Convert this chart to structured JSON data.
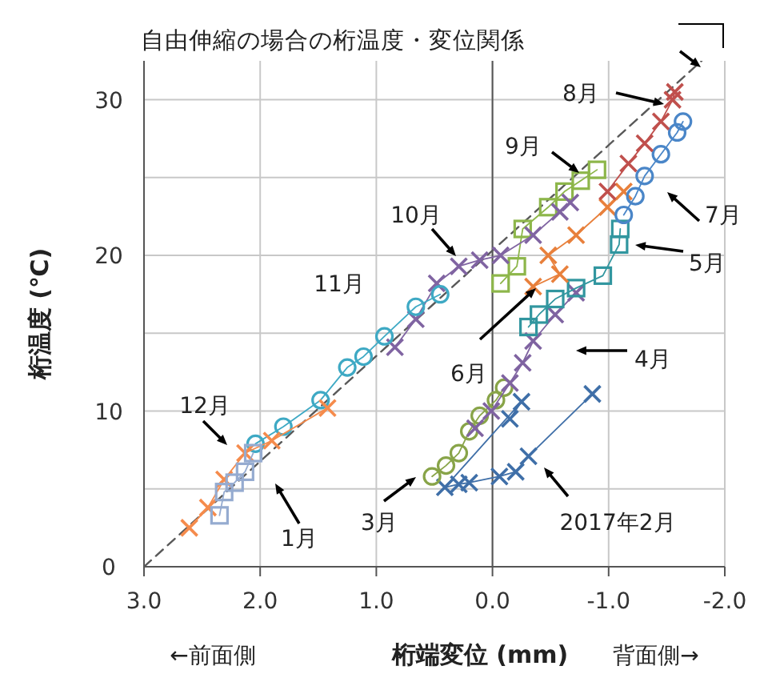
{
  "chart_data": {
    "type": "line",
    "xlabel": "桁端変位 (mm)",
    "ylabel": "桁温度 (℃)",
    "annotations": [
      "自由伸縮の場合の桁温度・変位関係",
      "←前面側",
      "背面側→"
    ],
    "xlim": [
      3,
      -2
    ],
    "ylim": [
      0,
      32.5
    ],
    "xticks": [
      {
        "value": 3,
        "label": "3.0"
      },
      {
        "value": 2,
        "label": "2.0"
      },
      {
        "value": 1,
        "label": "1.0"
      },
      {
        "value": 0,
        "label": "0.0"
      },
      {
        "value": -1,
        "label": "-1.0"
      },
      {
        "value": -2,
        "label": "-2.0"
      }
    ],
    "yticks": [
      0,
      {
        "value": 5,
        "label": null
      },
      10,
      {
        "value": 15,
        "label": null
      },
      20,
      {
        "value": 25,
        "label": null
      },
      30
    ],
    "grid": true,
    "series": [
      {
        "color": "#595959",
        "marker": "none",
        "line_style": "dashed",
        "x": [
          3,
          -1.8
        ],
        "values": [
          0,
          32.5
        ]
      },
      {
        "name": "2017年2月",
        "color": "#3f6fa8",
        "marker": "cross",
        "line_style": "solid",
        "x": [
          -0.15,
          -0.25,
          0.41,
          0.29,
          0.2,
          -0.06,
          -0.2,
          -0.31,
          -0.86
        ],
        "values": [
          9.5,
          10.6,
          5.1,
          5.3,
          5.4,
          5.8,
          6.1,
          7.1,
          11.1
        ]
      },
      {
        "name": "3月",
        "color": "#88a448",
        "marker": "circle",
        "line_style": "solid",
        "x": [
          0.52,
          0.4,
          0.29,
          0.2,
          0.11,
          -0.03,
          -0.1
        ],
        "values": [
          5.8,
          6.5,
          7.3,
          8.7,
          9.7,
          10.7,
          11.5
        ]
      },
      {
        "name": "4月",
        "color": "#7f63a1",
        "marker": "cross",
        "line_style": "solid",
        "x": [
          0.15,
          0.01,
          -0.15,
          -0.26,
          -0.35,
          -0.54,
          -0.72
        ],
        "values": [
          8.9,
          10,
          11.8,
          13.1,
          14.5,
          16.2,
          17.6
        ]
      },
      {
        "name": "5月",
        "color": "#31969f",
        "marker": "square",
        "line_style": "solid",
        "x": [
          -0.31,
          -0.4,
          -0.54,
          -0.72,
          -0.95,
          -1.09,
          -1.1
        ],
        "values": [
          15.4,
          16.2,
          17.2,
          17.9,
          18.7,
          20.7,
          21.7
        ]
      },
      {
        "name": "6月",
        "color": "#e8803c",
        "marker": "cross",
        "line_style": "solid",
        "x": [
          -0.35,
          -0.58,
          -0.48,
          -0.72,
          -0.99,
          -1.13
        ],
        "values": [
          18,
          18.8,
          20,
          21.3,
          23.1,
          24.1
        ]
      },
      {
        "name": "7月",
        "color": "#4a86c8",
        "marker": "circle",
        "line_style": "solid",
        "x": [
          -1.13,
          -1.23,
          -1.31,
          -1.45,
          -1.59,
          -1.64
        ],
        "values": [
          22.6,
          23.8,
          25.1,
          26.5,
          27.9,
          28.6
        ]
      },
      {
        "name": "8月",
        "color": "#c0504d",
        "marker": "cross",
        "line_style": "solid",
        "x": [
          -0.99,
          -1.17,
          -1.31,
          -1.45,
          -1.55,
          -1.57
        ],
        "values": [
          24.1,
          25.9,
          27.2,
          28.6,
          30,
          30.5
        ]
      },
      {
        "name": "9月",
        "color": "#8db64a",
        "marker": "square",
        "line_style": "solid",
        "x": [
          -0.07,
          -0.21,
          -0.26,
          -0.48,
          -0.62,
          -0.76,
          -0.9
        ],
        "values": [
          18.2,
          19.3,
          21.7,
          23.1,
          24.1,
          24.8,
          25.5
        ]
      },
      {
        "name": "10月",
        "color": "#8064a2",
        "marker": "cross",
        "line_style": "solid",
        "x": [
          0.84,
          0.66,
          0.48,
          0.29,
          0.11,
          -0.07,
          -0.35,
          -0.58,
          -0.67
        ],
        "values": [
          14.1,
          15.9,
          18.2,
          19.3,
          19.7,
          20,
          21.3,
          22.8,
          23.4
        ]
      },
      {
        "name": "11月",
        "color": "#3ea9c4",
        "marker": "circle",
        "line_style": "solid",
        "x": [
          2.04,
          1.8,
          1.48,
          1.25,
          1.11,
          0.93,
          0.66,
          0.45
        ],
        "values": [
          7.9,
          9,
          10.7,
          12.8,
          13.5,
          14.8,
          16.7,
          17.5
        ]
      },
      {
        "name": "12月",
        "color": "#f58b4c",
        "marker": "cross",
        "line_style": "solid",
        "x": [
          2.61,
          2.45,
          2.31,
          2.13,
          1.9,
          1.42
        ],
        "values": [
          2.5,
          3.8,
          5.6,
          7.3,
          8.1,
          10.2
        ]
      },
      {
        "name": "1月",
        "color": "#95abd0",
        "marker": "square",
        "line_style": "solid",
        "x": [
          2.35,
          2.31,
          2.22,
          2.13,
          2.06
        ],
        "values": [
          3.3,
          4.8,
          5.4,
          6.1,
          7.3
        ]
      }
    ]
  }
}
